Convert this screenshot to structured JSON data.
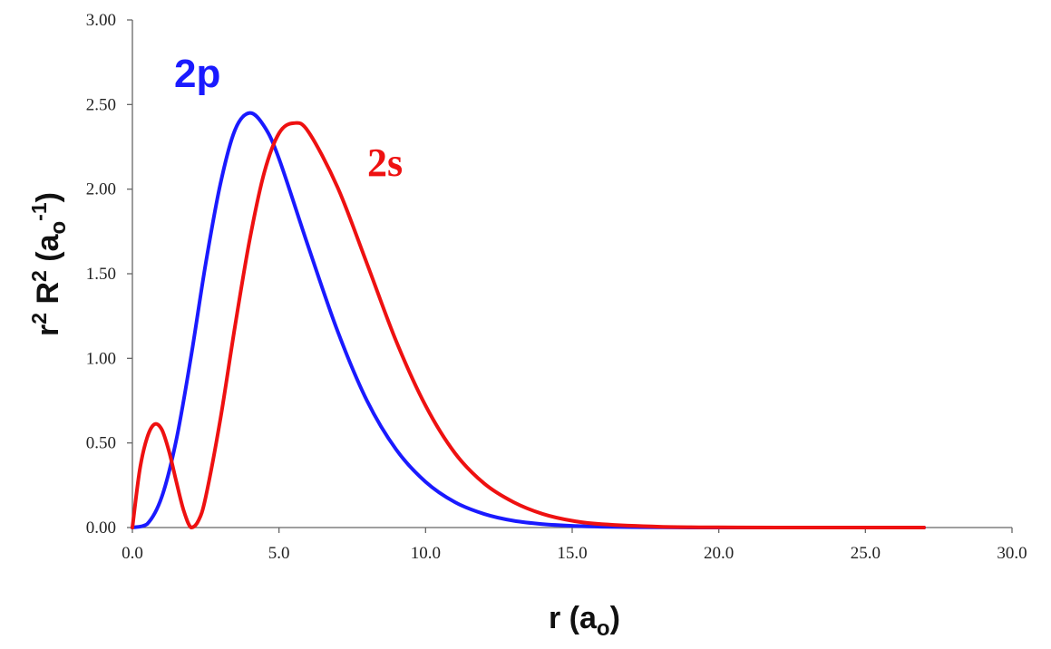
{
  "chart_data": {
    "type": "line",
    "xlabel": {
      "main": "r (a",
      "sub": "o",
      "end": ")"
    },
    "ylabel": {
      "r": "r",
      "sup1": "2",
      "R": " R",
      "sup2": "2",
      "open": " (a",
      "sub": "o",
      "sup3": "-1",
      "close": ")"
    },
    "xlim": [
      0,
      30
    ],
    "ylim": [
      0,
      3
    ],
    "x_ticks": [
      "0.0",
      "5.0",
      "10.0",
      "15.0",
      "20.0",
      "25.0",
      "30.0"
    ],
    "y_ticks": [
      "0.00",
      "0.50",
      "1.00",
      "1.50",
      "2.00",
      "2.50",
      "3.00"
    ],
    "grid": false,
    "series": [
      {
        "name": "2p",
        "color": "#1a1aff",
        "x": [
          0,
          0.5,
          1,
          1.5,
          2,
          2.5,
          3,
          3.5,
          4,
          4.5,
          5,
          6,
          7,
          8,
          9,
          10,
          11,
          12,
          13,
          14,
          15,
          16,
          18,
          20,
          22,
          25,
          27
        ],
        "y": [
          0,
          0.02,
          0.18,
          0.52,
          1.01,
          1.56,
          2.03,
          2.35,
          2.45,
          2.37,
          2.18,
          1.66,
          1.16,
          0.75,
          0.46,
          0.27,
          0.15,
          0.08,
          0.04,
          0.02,
          0.01,
          0.005,
          0.001,
          0,
          0,
          0,
          0
        ]
      },
      {
        "name": "2s",
        "color": "#ee1111",
        "x": [
          0,
          0.25,
          0.5,
          0.75,
          1,
          1.25,
          1.5,
          1.75,
          2,
          2.25,
          2.5,
          3,
          3.5,
          4,
          4.5,
          5,
          5.5,
          6,
          7,
          8,
          9,
          10,
          11,
          12,
          13,
          14,
          15,
          16,
          18,
          20,
          22,
          25,
          27
        ],
        "y": [
          0,
          0.34,
          0.53,
          0.61,
          0.58,
          0.45,
          0.27,
          0.1,
          0,
          0.04,
          0.18,
          0.64,
          1.19,
          1.7,
          2.1,
          2.33,
          2.39,
          2.34,
          2.01,
          1.56,
          1.1,
          0.72,
          0.44,
          0.26,
          0.15,
          0.08,
          0.04,
          0.02,
          0.005,
          0.001,
          0,
          0,
          0
        ]
      }
    ]
  }
}
